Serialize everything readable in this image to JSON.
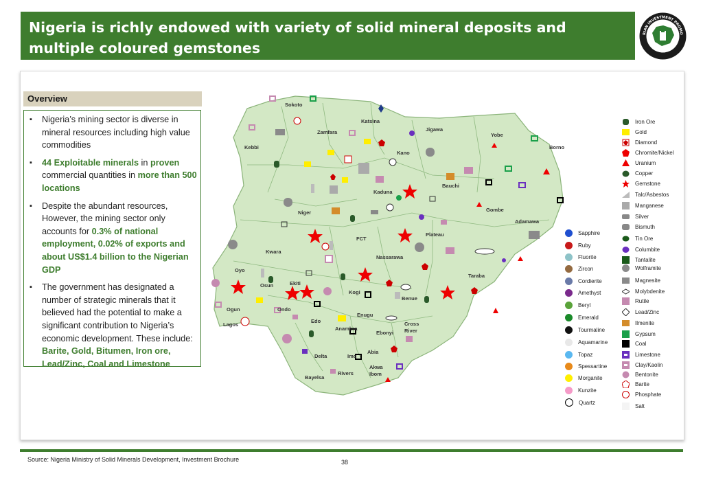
{
  "title": "Nigeria is richly endowed with variety of solid mineral deposits and multiple coloured gemstones",
  "logo_text": {
    "top": "NIGERIAN INVESTMENT PROMOTION",
    "bottom": "COMMISSION"
  },
  "overview": {
    "heading": "Overview",
    "b1": "Nigeria’s mining sector is diverse in mineral resources including high value commodities",
    "b2_a": "44 Exploitable minerals",
    "b2_b": " in ",
    "b2_c": "proven",
    "b2_d": " commercial quantities in ",
    "b2_e": "more than 500 locations",
    "b3_a": "Despite the abundant resources, However, the mining sector only accounts for ",
    "b3_b": "0.3% of national employment, 0.02% of exports and about US$1.4 billion to the Nigerian GDP",
    "b4_a": "The government has designated a number of strategic minerals that it believed had the potential to make a significant contribution to Nigeria’s economic development. These include: ",
    "b4_b": "Barite, Gold, Bitumen, Iron ore, Lead/Zinc, Coal and Limestone"
  },
  "states": [
    "Sokoto",
    "Katsina",
    "Jigawa",
    "Zamfara",
    "Yobe",
    "Kebbi",
    "Kano",
    "Borno",
    "Bauchi",
    "Kaduna",
    "Gombe",
    "Niger",
    "Adamawa",
    "Plateau",
    "FCT",
    "Kwara",
    "Nassarawa",
    "Oyo",
    "Taraba",
    "Ekiti",
    "Osun",
    "Kogi",
    "Benue",
    "Ogun",
    "Ondo",
    "Enugu",
    "Edo",
    "Lagos",
    "Cross River",
    "Anambra",
    "Ebonyi",
    "Abia",
    "Delta",
    "Imo",
    "Akwa Ibom",
    "Rivers",
    "Bayelsa"
  ],
  "legend_gems": [
    {
      "label": "Sapphire",
      "color": "#1f4fd0"
    },
    {
      "label": "Ruby",
      "color": "#c81a1a"
    },
    {
      "label": "Fluorite",
      "color": "#8ec3c8"
    },
    {
      "label": "Zircon",
      "color": "#946a40"
    },
    {
      "label": "Cordierite",
      "color": "#6a7aa8"
    },
    {
      "label": "Amethyst",
      "color": "#7a2a8c"
    },
    {
      "label": "Beryl",
      "color": "#5aa33a"
    },
    {
      "label": "Emerald",
      "color": "#1a8a2a"
    },
    {
      "label": "Tourmaline",
      "color": "#111111"
    },
    {
      "label": "Aquamarine",
      "color": "#e8e8e8"
    },
    {
      "label": "Topaz",
      "color": "#5ab8f0"
    },
    {
      "label": "Spessartine",
      "color": "#e88a1a"
    },
    {
      "label": "Morganite",
      "color": "#ffef00"
    },
    {
      "label": "Kunzite",
      "color": "#f59ac8"
    },
    {
      "label": "Quartz",
      "color": "#ffffff"
    }
  ],
  "legend_minerals": [
    {
      "label": "Iron Ore",
      "icon": "iron-ore"
    },
    {
      "label": "Gold",
      "icon": "gold"
    },
    {
      "label": "Diamond",
      "icon": "diamond"
    },
    {
      "label": "Chromite/Nickel",
      "icon": "chromite"
    },
    {
      "label": "Uranium",
      "icon": "uranium"
    },
    {
      "label": "Copper",
      "icon": "copper"
    },
    {
      "label": "Gemstone",
      "icon": "gemstone"
    },
    {
      "label": "Talc/Asbestos",
      "icon": "talc"
    },
    {
      "label": "Manganese",
      "icon": "manganese"
    },
    {
      "label": "Silver",
      "icon": "silver"
    },
    {
      "label": "Bismuth",
      "icon": "bismuth"
    },
    {
      "label": "Tin Ore",
      "icon": "tin"
    },
    {
      "label": "Columbite",
      "icon": "columbite"
    },
    {
      "label": "Tantalite",
      "icon": "tantalite"
    },
    {
      "label": "Wolframite",
      "icon": "wolframite"
    },
    {
      "label": "Magnesite",
      "icon": "magnesite"
    },
    {
      "label": "Molybdenite",
      "icon": "molybdenite"
    },
    {
      "label": "Rutile",
      "icon": "rutile"
    },
    {
      "label": "Lead/Zinc",
      "icon": "lead-zinc"
    },
    {
      "label": "Ilmenite",
      "icon": "ilmenite"
    },
    {
      "label": "Gypsum",
      "icon": "gypsum"
    },
    {
      "label": "Coal",
      "icon": "coal"
    },
    {
      "label": "Limestone",
      "icon": "limestone"
    },
    {
      "label": "Clay/Kaolin",
      "icon": "clay"
    },
    {
      "label": "Bentonite",
      "icon": "bentonite"
    },
    {
      "label": "Barite",
      "icon": "barite"
    },
    {
      "label": "Phosphate",
      "icon": "phosphate"
    },
    {
      "label": "Salt",
      "icon": "salt"
    }
  ],
  "footer": {
    "source": "Source: Nigeria Ministry of Solid Minerals Development, Investment Brochure",
    "page": "38"
  }
}
